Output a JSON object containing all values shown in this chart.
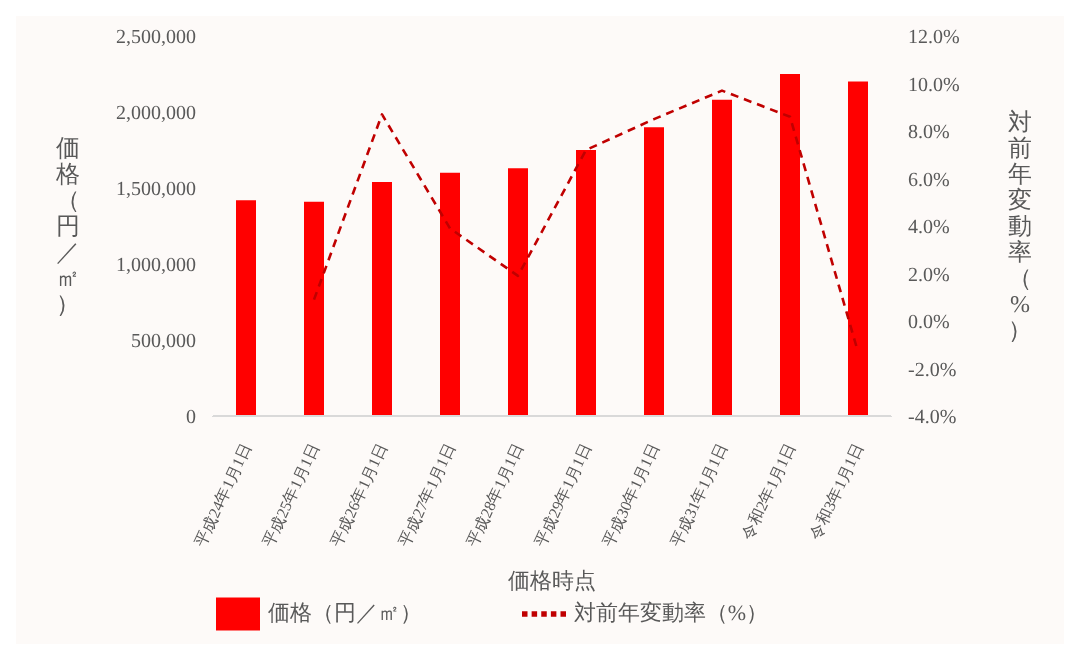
{
  "chart_data": {
    "type": "bar",
    "xlabel": "価格時点",
    "ylabel": "価格（円／㎡）",
    "y2label": "対前年変動率（%）",
    "categories": [
      "平成24年1月1日",
      "平成25年1月1日",
      "平成26年1月1日",
      "平成27年1月1日",
      "平成28年1月1日",
      "平成29年1月1日",
      "平成30年1月1日",
      "平成31年1月1日",
      "令和2年1月1日",
      "令和3年1月1日"
    ],
    "series": [
      {
        "name": "価格（円／㎡）",
        "color": "#ff0000",
        "values": [
          1420000,
          1410000,
          1540000,
          1600000,
          1630000,
          1750000,
          1900000,
          2080000,
          2250000,
          2200000
        ]
      },
      {
        "name": "対前年変動率（%）",
        "type": "line",
        "axis": "y2",
        "color": "#c00000",
        "line_style": "dashed",
        "values": [
          null,
          0.9,
          8.7,
          3.9,
          1.9,
          7.2,
          8.5,
          9.7,
          8.6,
          -1.3
        ]
      }
    ],
    "ylim": [
      0,
      2500000
    ],
    "yticks": [
      {
        "value": 0,
        "label": "0"
      },
      {
        "value": 500000,
        "label": "500,000"
      },
      {
        "value": 1000000,
        "label": "1,000,000"
      },
      {
        "value": 1500000,
        "label": "1,500,000"
      },
      {
        "value": 2000000,
        "label": "2,000,000"
      },
      {
        "value": 2500000,
        "label": "2,500,000"
      }
    ],
    "y2lim": [
      -4,
      12
    ],
    "y2ticks": [
      {
        "value": -4,
        "label": "-4.0%"
      },
      {
        "value": -2,
        "label": "-2.0%"
      },
      {
        "value": 0,
        "label": "0.0%"
      },
      {
        "value": 2,
        "label": "2.0%"
      },
      {
        "value": 4,
        "label": "4.0%"
      },
      {
        "value": 6,
        "label": "6.0%"
      },
      {
        "value": 8,
        "label": "8.0%"
      },
      {
        "value": 10,
        "label": "10.0%"
      },
      {
        "value": 12,
        "label": "12.0%"
      }
    ],
    "legend": "bottom",
    "grid": false
  }
}
